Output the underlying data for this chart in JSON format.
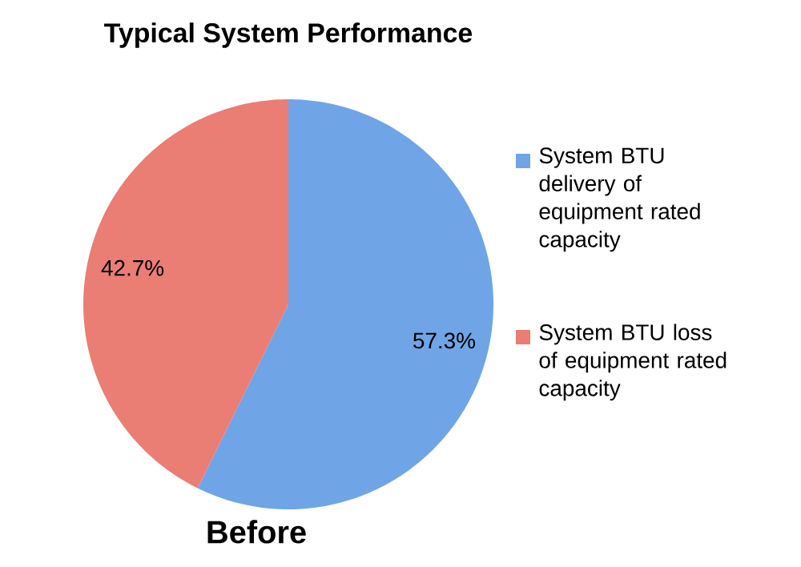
{
  "chart_data": {
    "type": "pie",
    "title": "Typical System Performance",
    "categories": [
      "System BTU delivery of equipment rated capacity",
      "System BTU loss of equipment rated capacity"
    ],
    "values": [
      57.3,
      42.7
    ],
    "colors": [
      "#6fa5e6",
      "#ea7d74"
    ],
    "value_labels": [
      "57.3%",
      "42.7%"
    ],
    "annotations": [
      "Before"
    ],
    "legend": "right"
  }
}
